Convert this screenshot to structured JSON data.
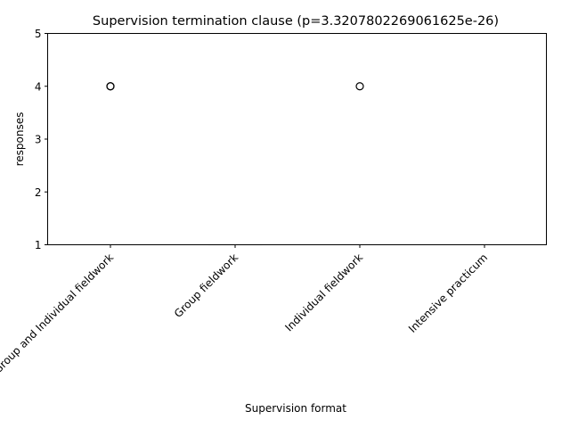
{
  "chart_data": {
    "type": "box",
    "title": "Supervision termination clause (p=3.3207802269061625e-26)",
    "xlabel": "Supervision format",
    "ylabel": "responses",
    "ylim": [
      1,
      5
    ],
    "yticks": [
      "1",
      "2",
      "3",
      "4",
      "5"
    ],
    "categories": [
      "Group and Individual fieldwork",
      "Group fieldwork",
      "Individual fieldwork",
      "Intensive practicum"
    ],
    "boxes": [
      {
        "median": 5,
        "q1": 5,
        "q3": 5,
        "whislo": 5,
        "whishi": 5,
        "fliers": [
          4,
          4
        ]
      },
      {
        "median": 1,
        "q1": 1,
        "q3": 1,
        "whislo": 1,
        "whishi": 1,
        "fliers": []
      },
      {
        "median": 5,
        "q1": 5,
        "q3": 5,
        "whislo": 5,
        "whishi": 5,
        "fliers": [
          4
        ]
      },
      {
        "median": 5,
        "q1": 5,
        "q3": 5,
        "whislo": 5,
        "whishi": 5,
        "fliers": []
      }
    ],
    "grid": false,
    "colors": {
      "box": "#000000",
      "median": "#ff7f0e",
      "flier": "#000000"
    }
  }
}
